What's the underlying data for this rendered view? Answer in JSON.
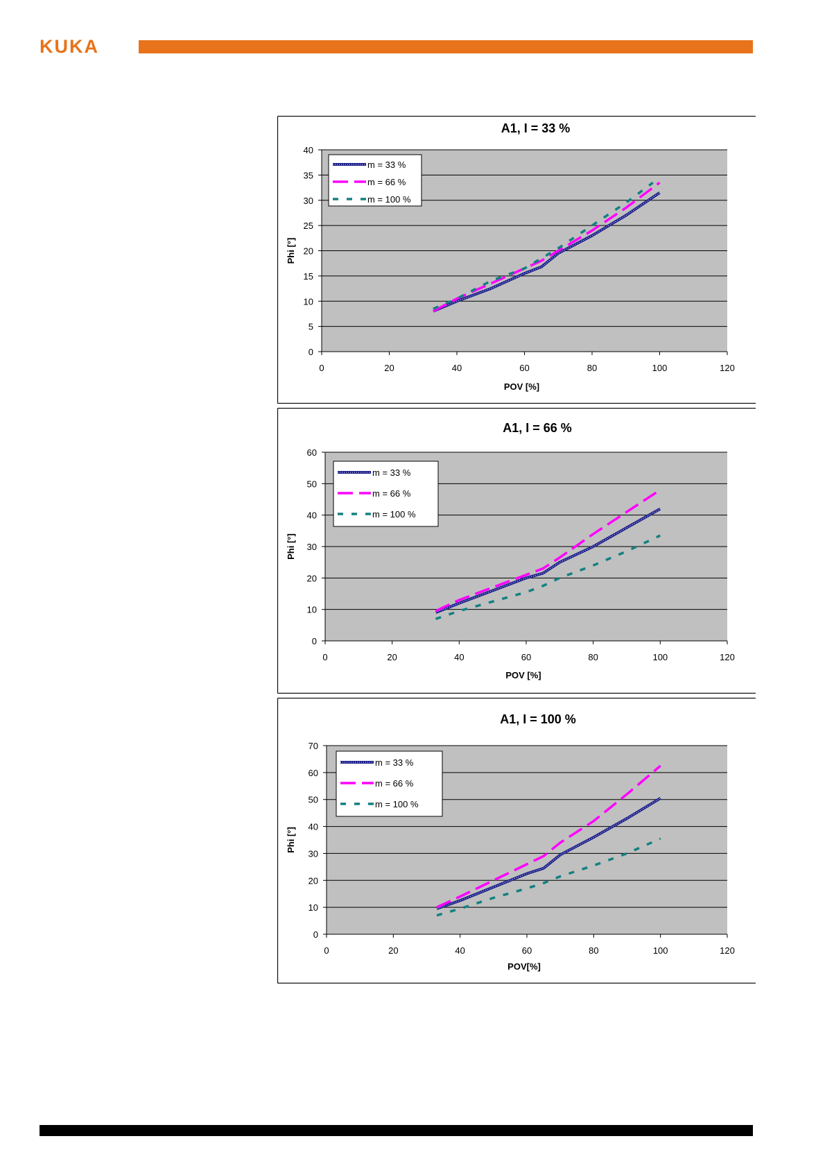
{
  "header": {
    "logo_text": "KUKA",
    "accent_color": "#e8731a"
  },
  "colors": {
    "plot_background": "#c0c0c0",
    "series_m33": "#1c1f8a",
    "series_m66": "#ff00ff",
    "series_m100": "#138080"
  },
  "chart_data": [
    {
      "type": "line",
      "title": "A1, I = 33 %",
      "xlabel": "POV [%]",
      "ylabel": "Phi [°]",
      "xlim": [
        0,
        120
      ],
      "ylim": [
        0,
        40
      ],
      "xticks": [
        0,
        20,
        40,
        60,
        80,
        100,
        120
      ],
      "yticks": [
        0,
        5,
        10,
        15,
        20,
        25,
        30,
        35,
        40
      ],
      "grid": true,
      "legend": "top-left",
      "series": [
        {
          "name": "m = 33 %",
          "style": "solid",
          "x": [
            33,
            40,
            50,
            60,
            65,
            70,
            80,
            90,
            100
          ],
          "y": [
            8,
            10,
            12.5,
            15.5,
            16.8,
            19.5,
            23,
            27,
            31.5
          ]
        },
        {
          "name": "m = 66 %",
          "style": "dashed",
          "x": [
            33,
            40,
            50,
            60,
            65,
            70,
            80,
            90,
            100
          ],
          "y": [
            8,
            10.5,
            13.5,
            16.5,
            18,
            20,
            24,
            28.5,
            33.5
          ]
        },
        {
          "name": "m = 100 %",
          "style": "dotted",
          "x": [
            33,
            40,
            50,
            60,
            65,
            70,
            80,
            90,
            98
          ],
          "y": [
            8.5,
            10.5,
            14,
            16.5,
            18.5,
            20.5,
            25,
            29.5,
            33.5
          ]
        }
      ]
    },
    {
      "type": "line",
      "title": "A1,  I = 66 %",
      "xlabel": "POV [%]",
      "ylabel": "Phi [°]",
      "xlim": [
        0,
        120
      ],
      "ylim": [
        0,
        60
      ],
      "xticks": [
        0,
        20,
        40,
        60,
        80,
        100,
        120
      ],
      "yticks": [
        0,
        10,
        20,
        30,
        40,
        50,
        60
      ],
      "grid": true,
      "legend": "top-left",
      "series": [
        {
          "name": "m = 33 %",
          "style": "solid",
          "x": [
            33,
            40,
            50,
            60,
            65,
            70,
            80,
            90,
            100
          ],
          "y": [
            9,
            12,
            16,
            20,
            21.5,
            25,
            30,
            36,
            42
          ]
        },
        {
          "name": "m = 66 %",
          "style": "dashed",
          "x": [
            33,
            40,
            50,
            60,
            65,
            70,
            80,
            90,
            100
          ],
          "y": [
            9.5,
            13,
            17,
            21,
            23,
            26.5,
            34,
            41,
            48
          ]
        },
        {
          "name": "m = 100 %",
          "style": "dotted",
          "x": [
            33,
            40,
            50,
            60,
            65,
            70,
            80,
            90,
            100
          ],
          "y": [
            7,
            9.5,
            12.5,
            15.5,
            17.5,
            20,
            24,
            28.5,
            33.5
          ]
        }
      ]
    },
    {
      "type": "line",
      "title": "A1,  I = 100 %",
      "xlabel": "POV[%]",
      "ylabel": "Phi [°]",
      "xlim": [
        0,
        120
      ],
      "ylim": [
        0,
        70
      ],
      "xticks": [
        0,
        20,
        40,
        60,
        80,
        100,
        120
      ],
      "yticks": [
        0,
        10,
        20,
        30,
        40,
        50,
        60,
        70
      ],
      "grid": true,
      "legend": "top-left",
      "series": [
        {
          "name": "m = 33 %",
          "style": "solid",
          "x": [
            33,
            40,
            50,
            60,
            65,
            70,
            80,
            90,
            100
          ],
          "y": [
            9.5,
            12.5,
            17.5,
            22.5,
            24.5,
            29.5,
            36,
            43,
            50.5
          ]
        },
        {
          "name": "m = 66 %",
          "style": "dashed",
          "x": [
            33,
            40,
            50,
            60,
            65,
            70,
            80,
            90,
            100
          ],
          "y": [
            10,
            14,
            20,
            26,
            29,
            34,
            42,
            52,
            62.5
          ]
        },
        {
          "name": "m = 100 %",
          "style": "dotted",
          "x": [
            33,
            40,
            50,
            60,
            65,
            70,
            80,
            90,
            100
          ],
          "y": [
            7,
            9.5,
            13.5,
            17,
            19,
            21.5,
            25.5,
            30,
            35.5
          ]
        }
      ]
    }
  ]
}
